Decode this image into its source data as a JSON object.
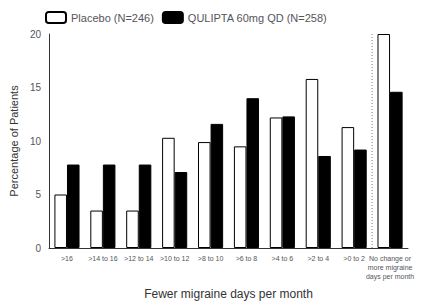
{
  "chart_data": {
    "type": "bar",
    "categories": [
      ">16",
      ">14 to 16",
      ">12 to 14",
      ">10 to 12",
      ">8 to 10",
      ">6 to 8",
      ">4 to 6",
      ">2 to 4",
      ">0 to 2",
      "No change or\nmore migraine\ndays per month"
    ],
    "series": [
      {
        "name": "Placebo (N=246)",
        "color": "#ffffff",
        "values": [
          5.0,
          3.5,
          3.5,
          10.3,
          9.9,
          9.5,
          12.2,
          15.8,
          11.3,
          20.0
        ]
      },
      {
        "name": "QULIPTA 60mg QD (N=258)",
        "color": "#000000",
        "values": [
          7.8,
          7.8,
          7.8,
          7.1,
          11.6,
          14.0,
          12.3,
          8.6,
          9.2,
          14.6
        ]
      }
    ],
    "xlabel": "Fewer migraine days per month",
    "ylabel": "Percentage of Patients",
    "ylim": [
      0,
      20
    ],
    "yticks": [
      0,
      5,
      10,
      15,
      20
    ],
    "grid": false,
    "legend": "upper left"
  }
}
